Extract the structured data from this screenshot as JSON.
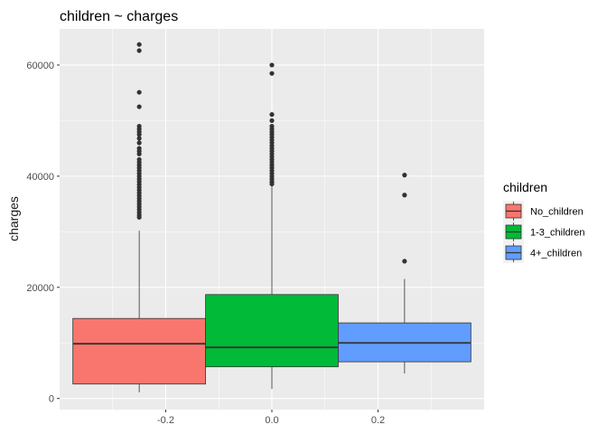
{
  "chart_data": {
    "type": "boxplot",
    "title": "children  ~ charges",
    "xlabel": "",
    "ylabel": "charges",
    "xlim": [
      -0.4,
      0.4
    ],
    "ylim": [
      -2000,
      66500
    ],
    "x_ticks": [
      {
        "value": -0.2,
        "label": "-0.2"
      },
      {
        "value": 0.0,
        "label": "0.0"
      },
      {
        "value": 0.2,
        "label": "0.2"
      }
    ],
    "y_ticks": [
      {
        "value": 0,
        "label": "0"
      },
      {
        "value": 20000,
        "label": "20000"
      },
      {
        "value": 40000,
        "label": "40000"
      },
      {
        "value": 60000,
        "label": "60000"
      }
    ],
    "grid": true,
    "legend": {
      "title": "children",
      "position": "right"
    },
    "series": [
      {
        "name": "No_children",
        "color": "#F8766D",
        "x_center": -0.25,
        "x_min": -0.375,
        "x_max": -0.125,
        "whisker_low": 1100,
        "q1": 2600,
        "median": 9850,
        "q3": 14400,
        "whisker_high": 30200,
        "outliers": [
          32600,
          33000,
          33500,
          34000,
          34500,
          35000,
          35500,
          36000,
          36500,
          37000,
          37500,
          38000,
          38500,
          39000,
          39500,
          40000,
          40500,
          41000,
          41500,
          42000,
          42500,
          43000,
          44000,
          44500,
          45000,
          46000,
          46800,
          47500,
          48000,
          48500,
          49000,
          52500,
          55100,
          62600,
          63700
        ]
      },
      {
        "name": "1-3_children",
        "color": "#00BA38",
        "x_center": 0.0,
        "x_min": -0.125,
        "x_max": 0.125,
        "whisker_low": 1700,
        "q1": 5700,
        "median": 9200,
        "q3": 18700,
        "whisker_high": 38300,
        "outliers": [
          38600,
          39000,
          39500,
          40000,
          40500,
          41000,
          41500,
          42000,
          42500,
          43000,
          43500,
          44000,
          44500,
          45000,
          45500,
          46000,
          46500,
          47000,
          47500,
          48000,
          48500,
          49000,
          50000,
          51100,
          58500,
          60000
        ]
      },
      {
        "name": "4+_children",
        "color": "#619CFF",
        "x_center": 0.25,
        "x_min": 0.125,
        "x_max": 0.375,
        "whisker_low": 4500,
        "q1": 6600,
        "median": 10000,
        "q3": 13600,
        "whisker_high": 21500,
        "outliers": [
          24700,
          36600,
          40200
        ]
      }
    ]
  }
}
